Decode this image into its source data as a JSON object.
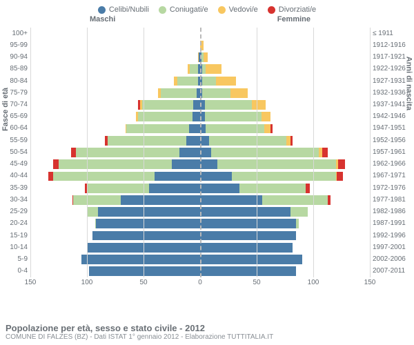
{
  "chart": {
    "type": "population_pyramid",
    "legend": [
      {
        "label": "Celibi/Nubili",
        "color": "#4a7ca8"
      },
      {
        "label": "Coniugati/e",
        "color": "#b7d8a2"
      },
      {
        "label": "Vedovi/e",
        "color": "#f8c760"
      },
      {
        "label": "Divorziati/e",
        "color": "#d7332f"
      }
    ],
    "header_left": "Maschi",
    "header_right": "Femmine",
    "y_title_left": "Fasce di età",
    "y_title_right": "Anni di nascita",
    "x_max": 150,
    "x_ticks": [
      -150,
      -100,
      -50,
      0,
      50,
      100,
      150
    ],
    "x_tick_labels": [
      "150",
      "100",
      "50",
      "0",
      "50",
      "100",
      "150"
    ],
    "grid_color": "#d8d8d8",
    "center_dash_color": "#b9b9b9",
    "background_color": "#ffffff",
    "label_fontsize": 10,
    "legend_fontsize": 11,
    "rows": [
      {
        "age": "100+",
        "birth": "≤ 1911",
        "m": [
          0,
          0,
          0,
          0
        ],
        "f": [
          0,
          0,
          0,
          0
        ]
      },
      {
        "age": "95-99",
        "birth": "1912-1916",
        "m": [
          0,
          0,
          0,
          0
        ],
        "f": [
          0,
          0,
          3,
          0
        ]
      },
      {
        "age": "90-94",
        "birth": "1917-1921",
        "m": [
          1,
          0,
          1,
          0
        ],
        "f": [
          1,
          2,
          4,
          0
        ]
      },
      {
        "age": "85-89",
        "birth": "1922-1926",
        "m": [
          2,
          7,
          2,
          0
        ],
        "f": [
          2,
          3,
          14,
          0
        ]
      },
      {
        "age": "80-84",
        "birth": "1927-1931",
        "m": [
          2,
          18,
          3,
          0
        ],
        "f": [
          2,
          12,
          18,
          0
        ]
      },
      {
        "age": "75-79",
        "birth": "1932-1936",
        "m": [
          3,
          32,
          2,
          0
        ],
        "f": [
          2,
          25,
          15,
          0
        ]
      },
      {
        "age": "70-74",
        "birth": "1937-1941",
        "m": [
          6,
          45,
          2,
          2
        ],
        "f": [
          4,
          42,
          12,
          0
        ]
      },
      {
        "age": "65-69",
        "birth": "1942-1946",
        "m": [
          7,
          48,
          2,
          0
        ],
        "f": [
          4,
          50,
          8,
          0
        ]
      },
      {
        "age": "60-64",
        "birth": "1947-1951",
        "m": [
          10,
          55,
          1,
          0
        ],
        "f": [
          5,
          52,
          5,
          2
        ]
      },
      {
        "age": "55-59",
        "birth": "1952-1956",
        "m": [
          12,
          70,
          0,
          2
        ],
        "f": [
          8,
          68,
          4,
          2
        ]
      },
      {
        "age": "50-54",
        "birth": "1957-1961",
        "m": [
          18,
          92,
          0,
          4
        ],
        "f": [
          10,
          95,
          3,
          5
        ]
      },
      {
        "age": "45-49",
        "birth": "1962-1966",
        "m": [
          25,
          100,
          0,
          5
        ],
        "f": [
          15,
          105,
          2,
          6
        ]
      },
      {
        "age": "40-44",
        "birth": "1967-1971",
        "m": [
          40,
          90,
          0,
          4
        ],
        "f": [
          28,
          92,
          1,
          5
        ]
      },
      {
        "age": "35-39",
        "birth": "1972-1976",
        "m": [
          45,
          55,
          0,
          2
        ],
        "f": [
          35,
          58,
          0,
          4
        ]
      },
      {
        "age": "30-34",
        "birth": "1977-1981",
        "m": [
          70,
          42,
          0,
          1
        ],
        "f": [
          55,
          58,
          0,
          2
        ]
      },
      {
        "age": "25-29",
        "birth": "1982-1986",
        "m": [
          90,
          10,
          0,
          0
        ],
        "f": [
          80,
          15,
          0,
          0
        ]
      },
      {
        "age": "20-24",
        "birth": "1987-1991",
        "m": [
          92,
          1,
          0,
          0
        ],
        "f": [
          85,
          2,
          0,
          0
        ]
      },
      {
        "age": "15-19",
        "birth": "1992-1996",
        "m": [
          95,
          0,
          0,
          0
        ],
        "f": [
          85,
          0,
          0,
          0
        ]
      },
      {
        "age": "10-14",
        "birth": "1997-2001",
        "m": [
          100,
          0,
          0,
          0
        ],
        "f": [
          82,
          0,
          0,
          0
        ]
      },
      {
        "age": "5-9",
        "birth": "2002-2006",
        "m": [
          105,
          0,
          0,
          0
        ],
        "f": [
          90,
          0,
          0,
          0
        ]
      },
      {
        "age": "0-4",
        "birth": "2007-2011",
        "m": [
          98,
          0,
          0,
          0
        ],
        "f": [
          85,
          0,
          0,
          0
        ]
      }
    ]
  },
  "footer": {
    "title": "Popolazione per età, sesso e stato civile - 2012",
    "subtitle": "COMUNE DI FALZES (BZ) - Dati ISTAT 1° gennaio 2012 - Elaborazione TUTTITALIA.IT"
  }
}
